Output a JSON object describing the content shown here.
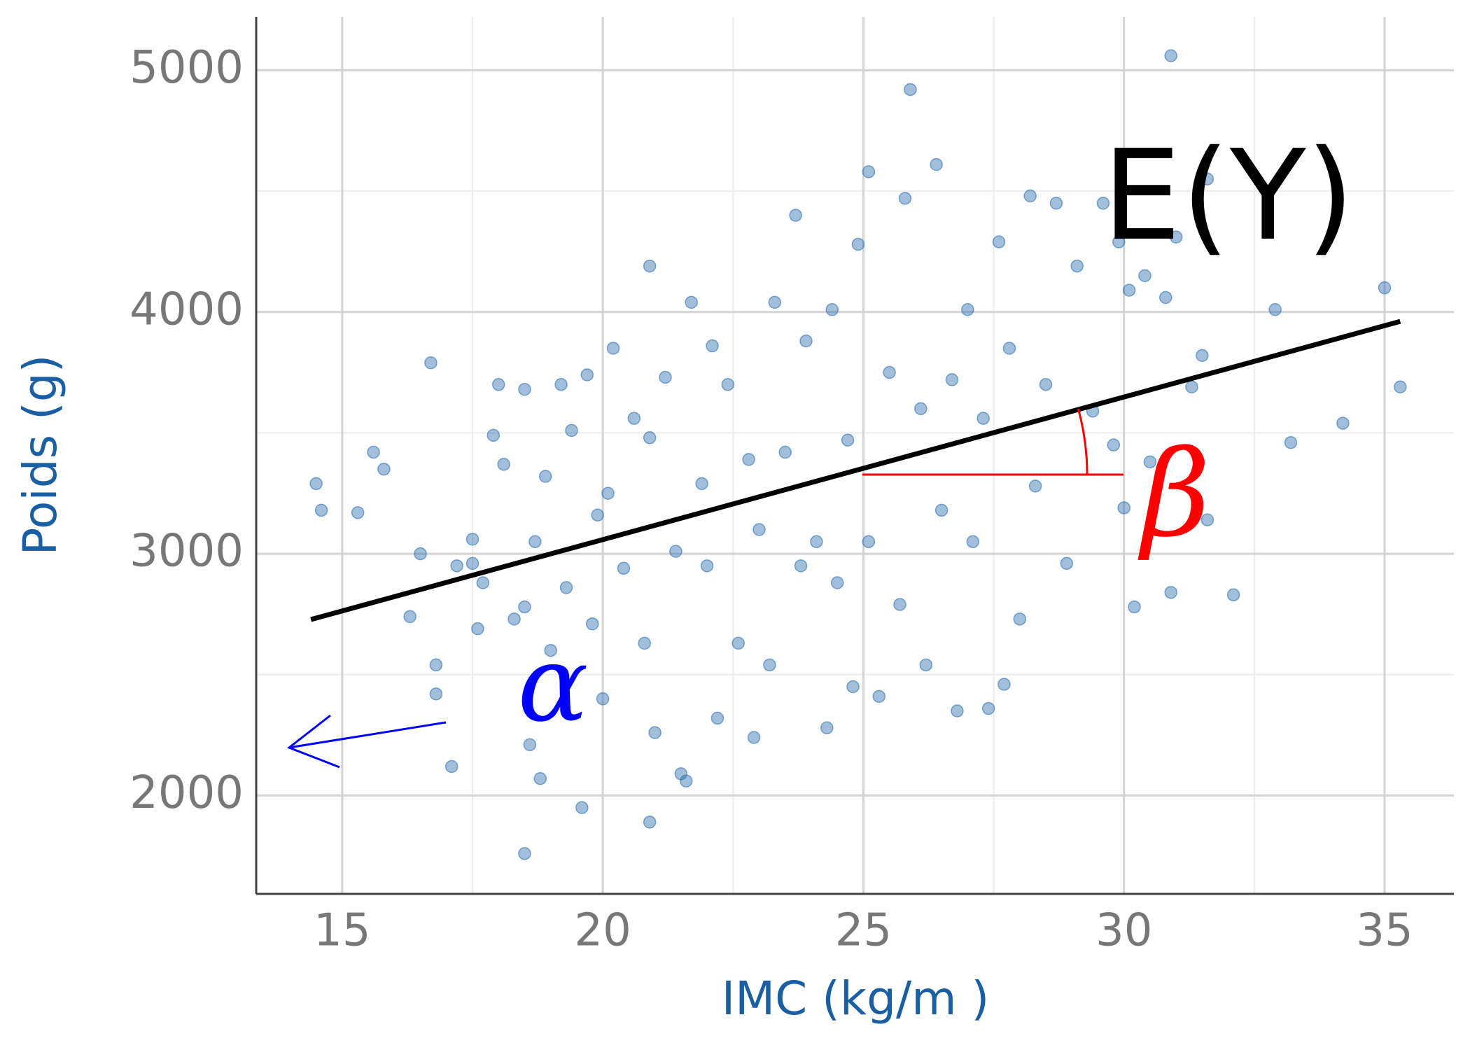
{
  "chart_data": {
    "type": "scatter",
    "x_label": "IMC (kg/m )",
    "y_label": "Poids (g)",
    "xlim": [
      13.35,
      36.33
    ],
    "ylim": [
      1593,
      5221
    ],
    "xticks": [
      15,
      20,
      25,
      30,
      35
    ],
    "yticks": [
      2000,
      3000,
      4000,
      5000
    ],
    "xminor": [
      17.5,
      22.5,
      27.5,
      32.5
    ],
    "yminor": [
      2500,
      3500,
      4500
    ],
    "grid": true,
    "series": [
      {
        "color": "#2f6fb0",
        "x": [
          14.5,
          14.6,
          15.3,
          15.6,
          15.8,
          16.3,
          16.5,
          16.7,
          16.8,
          16.8,
          17.1,
          17.2,
          17.5,
          17.5,
          17.6,
          17.7,
          17.9,
          18.0,
          18.1,
          18.3,
          18.5,
          18.5,
          18.5,
          18.6,
          18.7,
          18.8,
          18.9,
          19.0,
          19.2,
          19.3,
          19.4,
          19.6,
          19.7,
          19.8,
          19.9,
          20.0,
          20.1,
          20.2,
          20.4,
          20.6,
          20.8,
          20.9,
          20.9,
          20.9,
          21.0,
          21.2,
          21.4,
          21.5,
          21.6,
          21.7,
          21.9,
          22.0,
          22.1,
          22.2,
          22.4,
          22.6,
          22.8,
          22.9,
          23.0,
          23.2,
          23.3,
          23.5,
          23.7,
          23.8,
          23.9,
          24.1,
          24.3,
          24.4,
          24.5,
          24.7,
          24.8,
          24.9,
          25.1,
          25.1,
          25.3,
          25.5,
          25.7,
          25.8,
          25.9,
          26.1,
          26.2,
          26.4,
          26.5,
          26.7,
          26.8,
          27.0,
          27.1,
          27.3,
          27.4,
          27.6,
          27.7,
          27.8,
          28.0,
          28.2,
          28.3,
          28.5,
          28.7,
          28.9,
          29.1,
          29.4,
          29.6,
          29.8,
          29.9,
          30.0,
          30.1,
          30.2,
          30.4,
          30.5,
          30.8,
          30.9,
          30.9,
          31.0,
          31.3,
          31.5,
          31.6,
          31.6,
          32.1,
          32.9,
          33.2,
          34.2,
          35.0,
          35.3
        ],
        "y": [
          3290,
          3180,
          3170,
          3420,
          3350,
          2740,
          3000,
          3790,
          2540,
          2420,
          2120,
          2950,
          2960,
          3060,
          2690,
          2880,
          3490,
          3700,
          3370,
          2730,
          3680,
          2780,
          1760,
          2210,
          3050,
          2070,
          3320,
          2600,
          3700,
          2860,
          3510,
          1950,
          3740,
          2710,
          3160,
          2400,
          3250,
          3850,
          2940,
          3560,
          2630,
          3480,
          1890,
          4190,
          2260,
          3730,
          3010,
          2090,
          2060,
          4040,
          3290,
          2950,
          3860,
          2320,
          3700,
          2630,
          3390,
          2240,
          3100,
          2540,
          4040,
          3420,
          4400,
          2950,
          3880,
          3050,
          2280,
          4010,
          2880,
          3470,
          2450,
          4280,
          3050,
          4580,
          2410,
          3750,
          2790,
          4470,
          4920,
          3600,
          2540,
          4610,
          3180,
          3720,
          2350,
          4010,
          3050,
          3560,
          2360,
          4290,
          2460,
          3850,
          2730,
          4480,
          3280,
          3700,
          4450,
          2960,
          4190,
          3590,
          4450,
          3450,
          4290,
          3190,
          4090,
          2780,
          4150,
          3380,
          4060,
          5060,
          2840,
          4310,
          3690,
          3820,
          3140,
          4550,
          2830,
          4010,
          3460,
          3540,
          4100,
          3690
        ]
      }
    ],
    "fit_line": {
      "label": "E(Y)",
      "x": [
        14.4,
        35.3
      ],
      "y": [
        2728,
        3961
      ],
      "color": "#000000"
    },
    "annotations": [
      {
        "text": "β",
        "color": "#ff0000"
      },
      {
        "text": "α",
        "color": "#0000ff"
      }
    ]
  }
}
